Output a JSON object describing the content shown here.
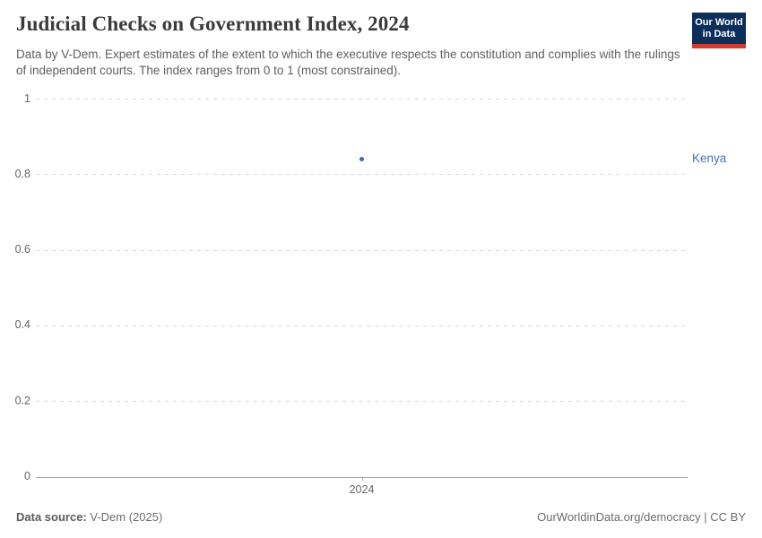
{
  "header": {
    "title": "Judicial Checks on Government Index, 2024",
    "subtitle": "Data by V-Dem. Expert estimates of the extent to which the executive respects the constitution and complies with the rulings of independent courts. The index ranges from 0 to 1 (most constrained).",
    "logo": {
      "line1": "Our World",
      "line2": "in Data"
    }
  },
  "colors": {
    "point_blue": "#3e6bb0",
    "label_blue": "#4d6fb0",
    "logo_navy": "#0c2e5a",
    "logo_red": "#cf3d32",
    "gridline_gray": "#d7d7d7",
    "axis_gray": "#a5a5a5",
    "text_gray": "#666666"
  },
  "chart_data": {
    "type": "scatter",
    "title": "Judicial Checks on Government Index, 2024",
    "xlabel": "",
    "ylabel": "",
    "x": [
      2024
    ],
    "xtick_label": "2024",
    "ylim": [
      0,
      1
    ],
    "yticks": [
      0,
      0.2,
      0.4,
      0.6,
      0.8,
      1
    ],
    "ytick_labels": [
      "0",
      "0.2",
      "0.4",
      "0.6",
      "0.8",
      "1"
    ],
    "grid": "horizontal-dashed",
    "legend_position": "right-of-plot",
    "series": [
      {
        "name": "Kenya",
        "x": [
          2024
        ],
        "values": [
          0.84
        ],
        "color": "#3e6bb0",
        "label_color": "#4d6fb0"
      }
    ]
  },
  "footer": {
    "source_label": "Data source:",
    "source_value": "V-Dem (2025)",
    "link": "OurWorldinData.org/democracy | CC BY"
  }
}
